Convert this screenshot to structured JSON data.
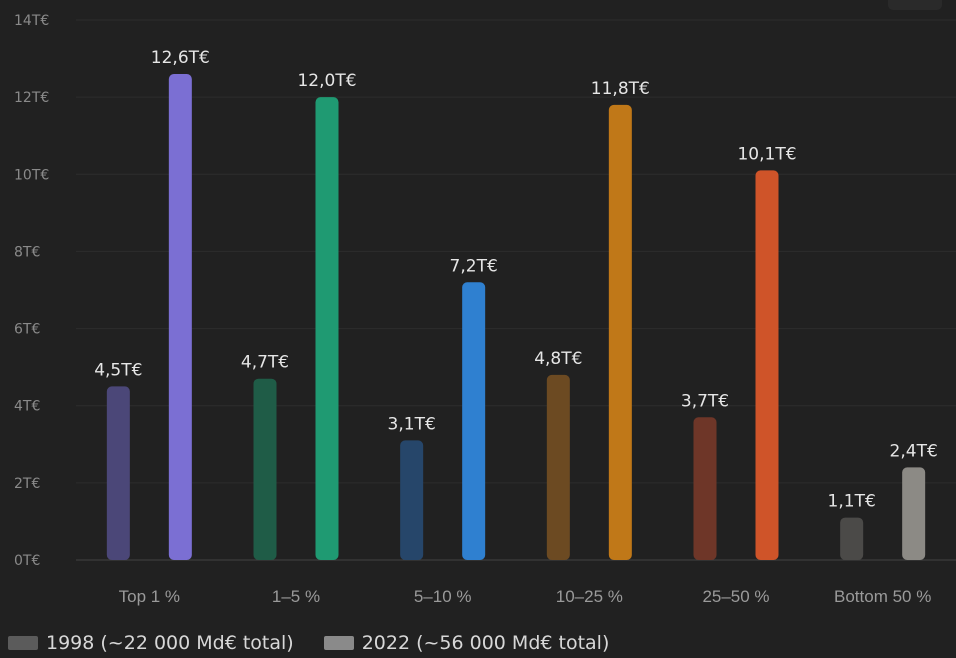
{
  "chart_data": {
    "type": "bar",
    "categories": [
      "Top 1 %",
      "1–5 %",
      "5–10 %",
      "10–25 %",
      "25–50 %",
      "Bottom 50 %"
    ],
    "series": [
      {
        "name": "1998 (~22 000 Md€ total)",
        "values": [
          4.5,
          4.7,
          3.1,
          4.8,
          3.7,
          1.1
        ],
        "labels": [
          "4,5T€",
          "4,7T€",
          "3,1T€",
          "4,8T€",
          "3,7T€",
          "1,1T€"
        ],
        "colors": [
          "#4b4778",
          "#1f5c47",
          "#26466a",
          "#6c4a22",
          "#6e3628",
          "#4b4a48"
        ]
      },
      {
        "name": "2022 (~56 000 Md€ total)",
        "values": [
          12.6,
          12.0,
          7.2,
          11.8,
          10.1,
          2.4
        ],
        "labels": [
          "12,6T€",
          "12,0T€",
          "7,2T€",
          "11,8T€",
          "10,1T€",
          "2,4T€"
        ],
        "colors": [
          "#7b6fd3",
          "#1f9a72",
          "#2f80d0",
          "#c07818",
          "#cf5429",
          "#8c8a85"
        ]
      }
    ],
    "yticks": [
      "0T€",
      "2T€",
      "4T€",
      "6T€",
      "8T€",
      "10T€",
      "12T€",
      "14T€"
    ],
    "ylim": [
      0,
      14
    ],
    "grid": true,
    "legend_position": "bottom-left",
    "legend_colors": [
      "#5b5b5b",
      "#8a8a8a"
    ]
  }
}
